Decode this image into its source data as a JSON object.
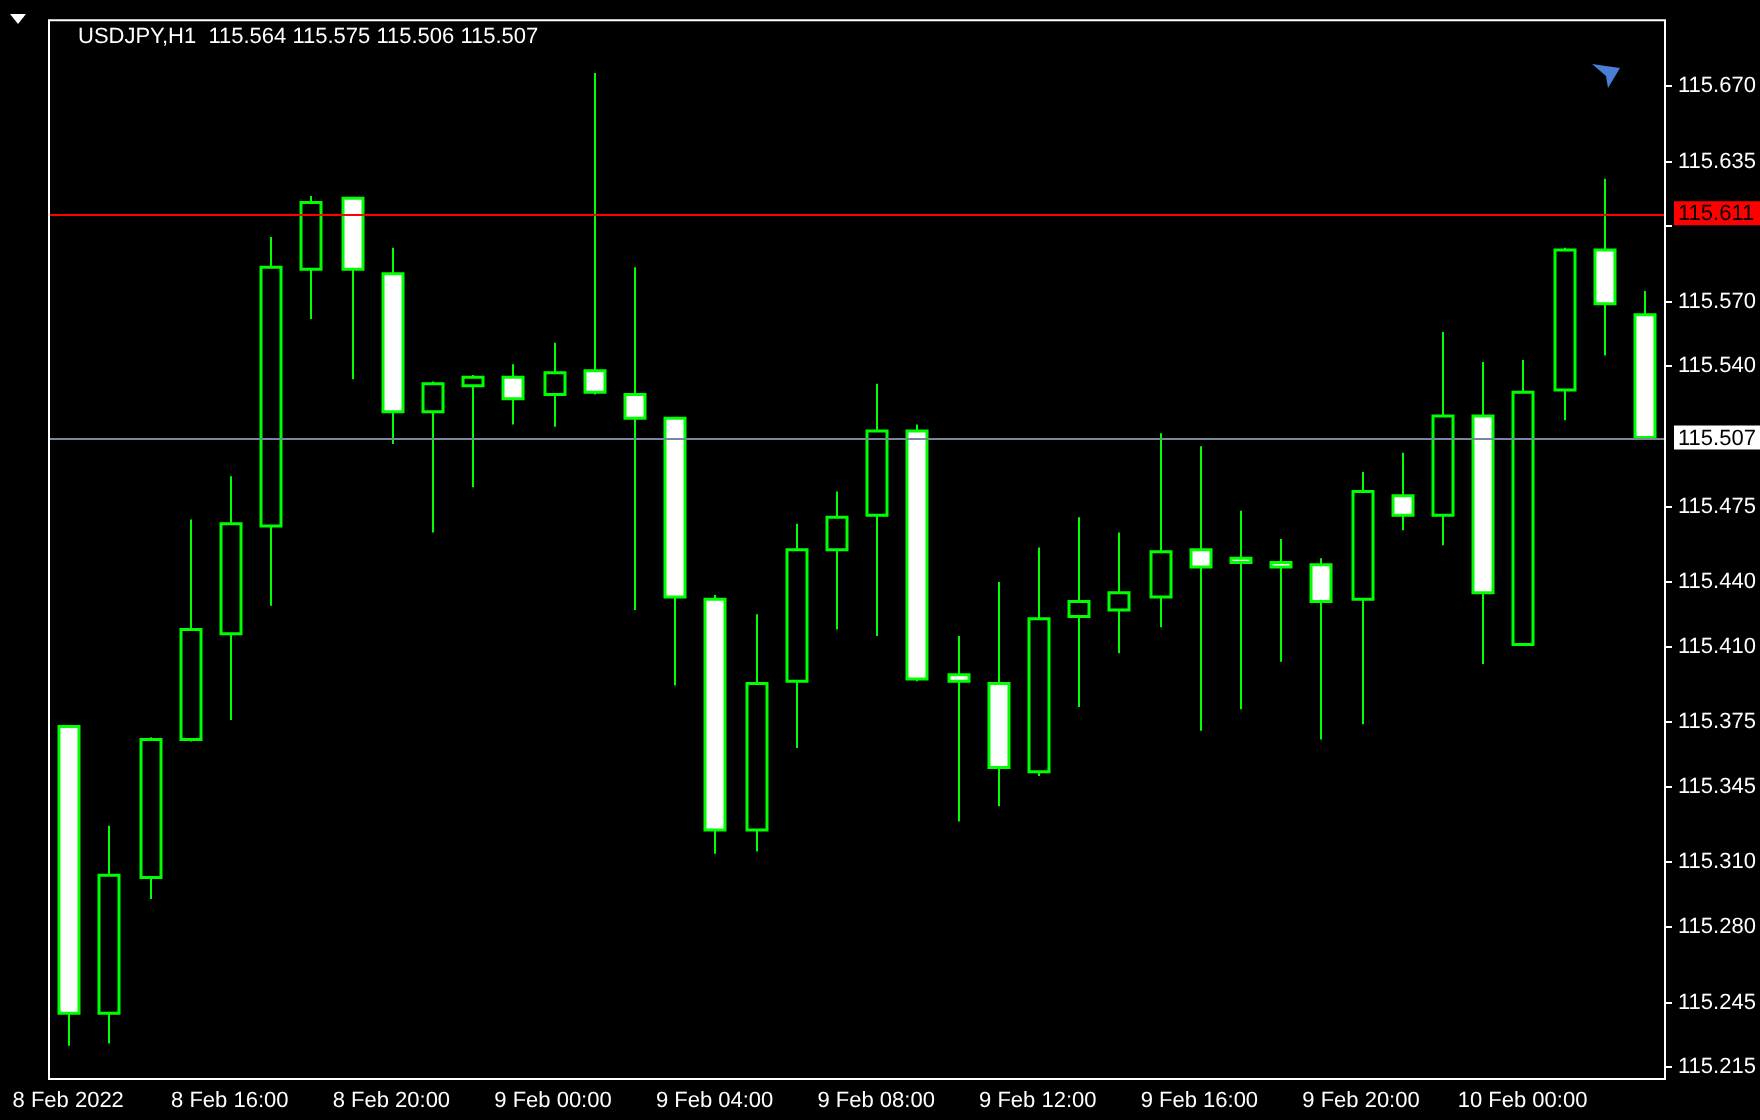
{
  "chart_data": {
    "type": "candlestick",
    "title": "USDJPY,H1  115.564 115.575 115.506 115.507",
    "categories": [
      "8 Feb 2022",
      null,
      null,
      null,
      "8 Feb 16:00",
      null,
      null,
      null,
      "8 Feb 20:00",
      null,
      null,
      null,
      "9 Feb 00:00",
      null,
      null,
      null,
      "9 Feb 04:00",
      null,
      null,
      null,
      "9 Feb 08:00",
      null,
      null,
      null,
      "9 Feb 12:00",
      null,
      null,
      null,
      "9 Feb 16:00",
      null,
      null,
      null,
      "9 Feb 20:00",
      null,
      null,
      null,
      "10 Feb 00:00",
      null,
      null,
      null
    ],
    "ohlc": [
      [
        115.373,
        115.373,
        115.225,
        115.24
      ],
      [
        115.24,
        115.327,
        115.226,
        115.304
      ],
      [
        115.303,
        115.368,
        115.293,
        115.367
      ],
      [
        115.367,
        115.469,
        115.366,
        115.418
      ],
      [
        115.416,
        115.489,
        115.376,
        115.467
      ],
      [
        115.466,
        115.6,
        115.429,
        115.586
      ],
      [
        115.585,
        115.619,
        115.562,
        115.616
      ],
      [
        115.618,
        115.618,
        115.534,
        115.585
      ],
      [
        115.583,
        115.595,
        115.504,
        115.519
      ],
      [
        115.519,
        115.533,
        115.463,
        115.532
      ],
      [
        115.531,
        115.536,
        115.484,
        115.535
      ],
      [
        115.535,
        115.541,
        115.513,
        115.525
      ],
      [
        115.527,
        115.551,
        115.512,
        115.537
      ],
      [
        115.538,
        115.676,
        115.527,
        115.528
      ],
      [
        115.527,
        115.586,
        115.427,
        115.516
      ],
      [
        115.516,
        115.516,
        115.392,
        115.433
      ],
      [
        115.432,
        115.434,
        115.314,
        115.325
      ],
      [
        115.325,
        115.425,
        115.315,
        115.393
      ],
      [
        115.394,
        115.467,
        115.363,
        115.455
      ],
      [
        115.455,
        115.482,
        115.418,
        115.47
      ],
      [
        115.471,
        115.532,
        115.415,
        115.51
      ],
      [
        115.51,
        115.513,
        115.394,
        115.395
      ],
      [
        115.397,
        115.415,
        115.329,
        115.394
      ],
      [
        115.393,
        115.44,
        115.336,
        115.354
      ],
      [
        115.352,
        115.456,
        115.35,
        115.423
      ],
      [
        115.424,
        115.47,
        115.382,
        115.431
      ],
      [
        115.427,
        115.463,
        115.407,
        115.435
      ],
      [
        115.433,
        115.509,
        115.419,
        115.454
      ],
      [
        115.455,
        115.503,
        115.371,
        115.447
      ],
      [
        115.451,
        115.473,
        115.381,
        115.449
      ],
      [
        115.449,
        115.46,
        115.403,
        115.447
      ],
      [
        115.448,
        115.451,
        115.367,
        115.431
      ],
      [
        115.432,
        115.491,
        115.374,
        115.482
      ],
      [
        115.48,
        115.5,
        115.464,
        115.471
      ],
      [
        115.471,
        115.556,
        115.457,
        115.517
      ],
      [
        115.517,
        115.542,
        115.402,
        115.435
      ],
      [
        115.411,
        115.543,
        115.411,
        115.528
      ],
      [
        115.529,
        115.595,
        115.515,
        115.594
      ],
      [
        115.594,
        115.627,
        115.545,
        115.569
      ],
      [
        115.564,
        115.575,
        115.506,
        115.507
      ]
    ],
    "color": "#00ff00",
    "ylim": [
      115.21,
      115.701
    ],
    "yticks": [
      {
        "value": 115.215,
        "label": "115.215"
      },
      {
        "value": 115.245,
        "label": "115.245"
      },
      {
        "value": 115.28,
        "label": "115.280"
      },
      {
        "value": 115.31,
        "label": "115.310"
      },
      {
        "value": 115.345,
        "label": "115.345"
      },
      {
        "value": 115.375,
        "label": "115.375"
      },
      {
        "value": 115.41,
        "label": "115.410"
      },
      {
        "value": 115.44,
        "label": "115.440"
      },
      {
        "value": 115.475,
        "label": "115.475"
      },
      {
        "value": 115.54,
        "label": "115.540"
      },
      {
        "value": 115.57,
        "label": "115.570"
      },
      {
        "value": 115.605,
        "label": null
      },
      {
        "value": 115.635,
        "label": "115.635"
      },
      {
        "value": 115.67,
        "label": "115.670"
      }
    ],
    "ref_lines": [
      {
        "axis": "y",
        "value": 115.611,
        "label": "115.611",
        "color": "#ff0000"
      },
      {
        "axis": "y",
        "value": 115.507,
        "label": "115.507",
        "color": "#778899"
      }
    ],
    "grid": false,
    "legend": false
  }
}
